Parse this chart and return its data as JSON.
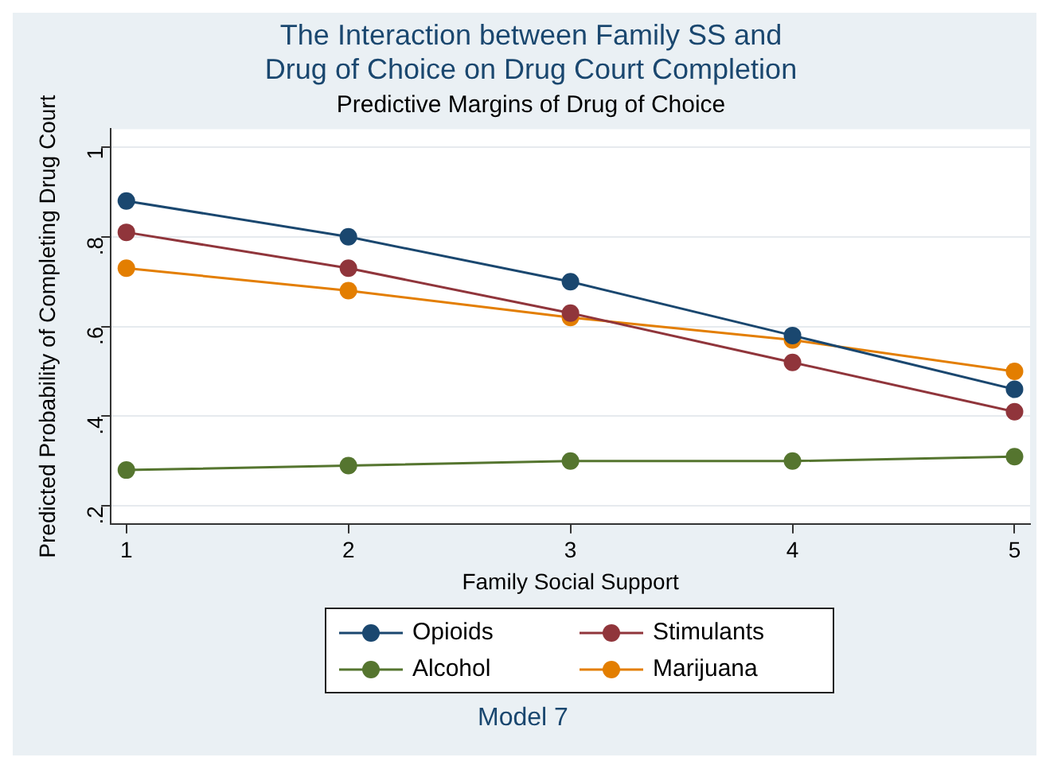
{
  "chart_data": {
    "type": "line",
    "title": "The Interaction between Family SS and\nDrug of Choice on Drug Court Completion",
    "subtitle": "Predictive Margins of Drug of Choice",
    "xlabel": "Family Social Support",
    "ylabel": "Predicted Probability of Completing Drug Court",
    "x": [
      1,
      2,
      3,
      4,
      5
    ],
    "series": [
      {
        "name": "Opioids",
        "color": "#1a476f",
        "values": [
          0.88,
          0.8,
          0.7,
          0.58,
          0.46
        ]
      },
      {
        "name": "Stimulants",
        "color": "#90353b",
        "values": [
          0.81,
          0.73,
          0.63,
          0.52,
          0.41
        ]
      },
      {
        "name": "Alcohol",
        "color": "#55752f",
        "values": [
          0.28,
          0.29,
          0.3,
          0.3,
          0.31
        ]
      },
      {
        "name": "Marijuana",
        "color": "#e37e00",
        "values": [
          0.73,
          0.68,
          0.62,
          0.57,
          0.5
        ]
      }
    ],
    "xlim": [
      0.93,
      5.07
    ],
    "xticks": [
      1,
      2,
      3,
      4,
      5
    ],
    "ylim": [
      0.16,
      1.04
    ],
    "yticks": [
      {
        "value": 0.2,
        "label": ".2"
      },
      {
        "value": 0.4,
        "label": ".4"
      },
      {
        "value": 0.6,
        "label": ".6"
      },
      {
        "value": 0.8,
        "label": ".8"
      },
      {
        "value": 1,
        "label": "1"
      }
    ],
    "grid": "y",
    "legend": "bottom",
    "marker": "circle",
    "line_style": "solid",
    "annotations": [
      "Model 7"
    ]
  }
}
